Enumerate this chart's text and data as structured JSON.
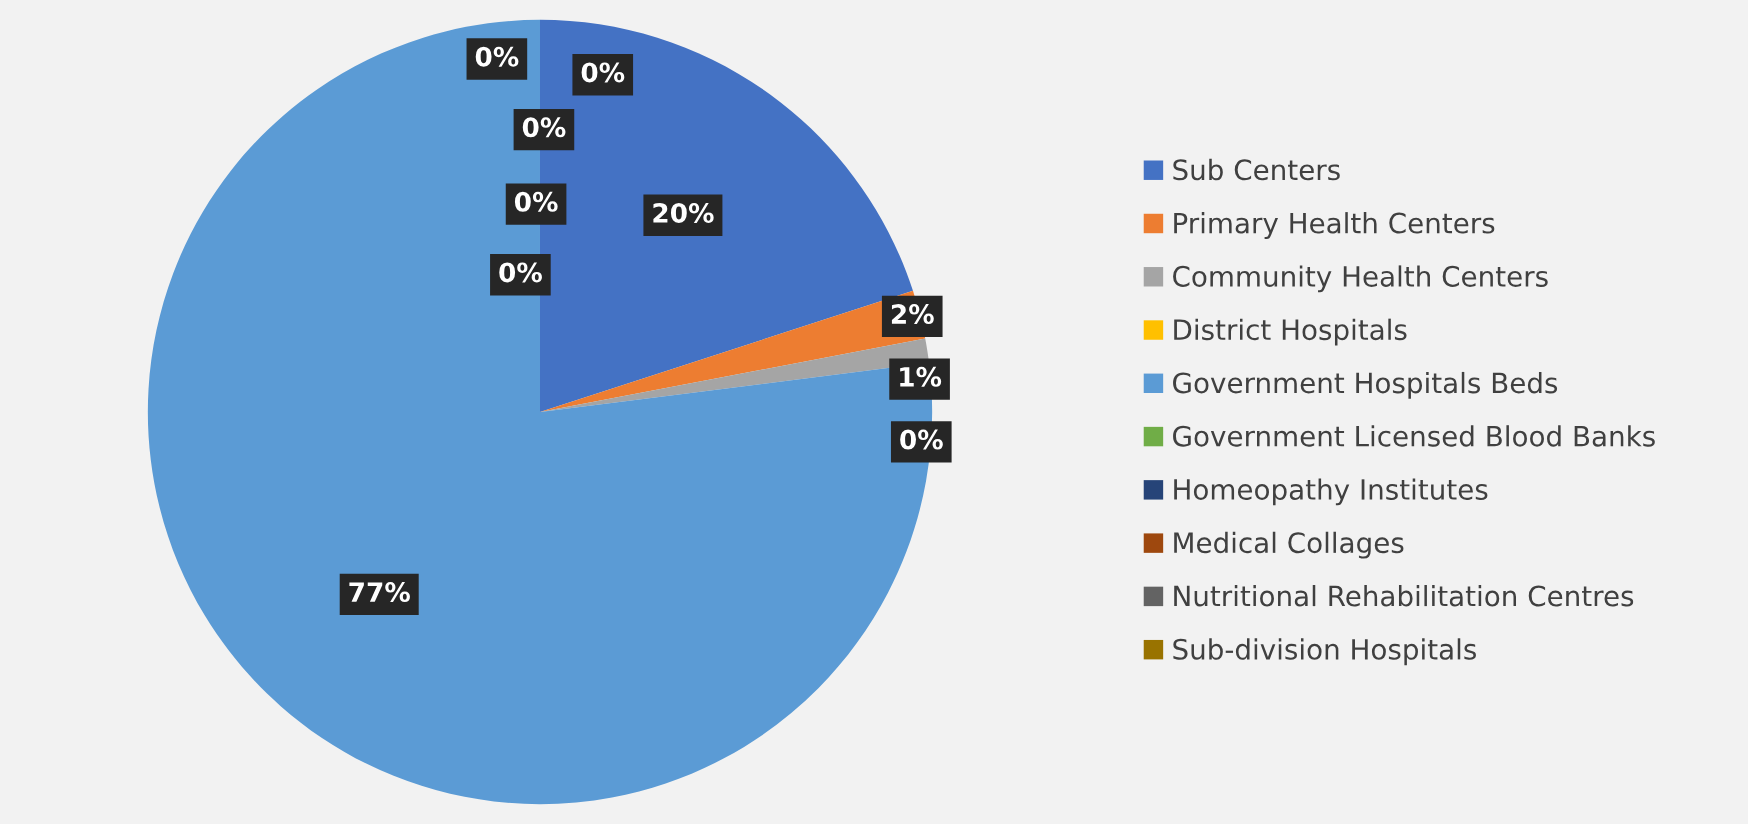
{
  "chart_data": {
    "type": "pie",
    "categories": [
      "Sub Centers",
      "Primary Health Centers",
      "Community Health Centers",
      "District Hospitals",
      "Government Hospitals Beds",
      "Government Licensed Blood Banks",
      "Homeopathy Institutes",
      "Medical Collages",
      "Nutritional Rehabilitation Centres",
      "Sub-division Hospitals"
    ],
    "values": [
      20,
      2,
      1,
      0,
      77,
      0,
      0,
      0,
      0,
      0
    ],
    "colors": [
      "#4472c4",
      "#ed7d31",
      "#a5a5a5",
      "#ffc000",
      "#5b9bd5",
      "#70ad47",
      "#264478",
      "#9e480e",
      "#636363",
      "#997300"
    ],
    "value_labels": [
      "20%",
      "2%",
      "1%",
      "0%",
      "77%",
      "0%",
      "0%",
      "0%",
      "0%",
      "0%"
    ],
    "legend": "right"
  }
}
